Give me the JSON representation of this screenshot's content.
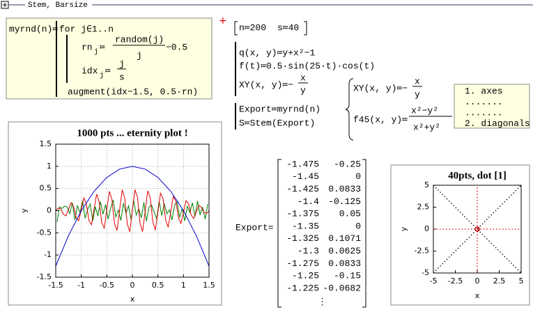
{
  "header": {
    "title": "Stem, Barsize"
  },
  "program": {
    "name": "myrnd(n)≔",
    "loop": "for j∈1..n",
    "rn": "rn",
    "rn_sub": "j",
    "rn_assign": "≔",
    "rn_num": "random(j)",
    "rn_den": "j",
    "rn_tail": "−0.5",
    "idx": "idx",
    "idx_sub": "j",
    "idx_assign": "≔",
    "idx_num": "j",
    "idx_den": "s",
    "result": "augment(idx−1.5, 0.5·rn)"
  },
  "params": {
    "n": "n≔200",
    "s": "s≔40"
  },
  "defs": {
    "q": "q(x, y)≔y+x²−1",
    "f": "f(t)≔0.5·sin(25·t)·cos(t)",
    "xy": "XY(x, y)≔−",
    "xy_num": "x",
    "xy_den": "y"
  },
  "export_defs": {
    "export": "Export≔myrnd(n)",
    "stem": "S≔Stem(Export)"
  },
  "brace": {
    "xy": "XY(x, y)≔−",
    "xy_num": "x",
    "xy_den": "y",
    "f45": "f45(x, y)≔",
    "f45_num": "x²−y²",
    "f45_den": "x²+y²"
  },
  "legend_box": {
    "lines": [
      "1. axes",
      ".......",
      ".......",
      "2. diagonals"
    ]
  },
  "matrix": {
    "label": "Export=",
    "rows": [
      [
        -1.475,
        -0.25
      ],
      [
        -1.45,
        0
      ],
      [
        -1.425,
        0.0833
      ],
      [
        -1.4,
        -0.125
      ],
      [
        -1.375,
        0.05
      ],
      [
        -1.35,
        0
      ],
      [
        -1.325,
        0.1071
      ],
      [
        -1.3,
        0.0625
      ],
      [
        -1.275,
        0.0833
      ],
      [
        -1.25,
        -0.15
      ],
      [
        -1.225,
        -0.0682
      ]
    ],
    "more": "⋮"
  },
  "chart_data": [
    {
      "type": "line",
      "title": "1000 pts ... eternity plot !",
      "x_label": "x",
      "y_label": "y",
      "xlim": [
        -1.5,
        1.5
      ],
      "ylim": [
        -1.5,
        1.5
      ],
      "xticks": [
        -1.5,
        -1,
        -0.5,
        0,
        0.5,
        1,
        1.5
      ],
      "yticks": [
        -1.5,
        -1,
        -0.5,
        0,
        0.5,
        1,
        1.5
      ],
      "grid": true,
      "series": [
        {
          "color": "#008000",
          "x": [
            -1.475,
            -1.425,
            -1.375,
            -1.325,
            -1.275,
            -1.225,
            -1.175,
            -1.125,
            -1.075,
            -1.025,
            -0.975,
            -0.925,
            -0.875,
            -0.825,
            -0.775,
            -0.725,
            -0.675,
            -0.625,
            -0.575,
            -0.525,
            -0.475,
            -0.425,
            -0.375,
            -0.325,
            -0.275,
            -0.225,
            -0.175,
            -0.125,
            -0.075,
            -0.025,
            0.025,
            0.075,
            0.125,
            0.175,
            0.225,
            0.275,
            0.325,
            0.375,
            0.425,
            0.475,
            0.525,
            0.575,
            0.625,
            0.675,
            0.725,
            0.775,
            0.825,
            0.875,
            0.925,
            0.975,
            1.025,
            1.075,
            1.125,
            1.175,
            1.225,
            1.275,
            1.325,
            1.375,
            1.425,
            1.475
          ],
          "values": [
            -0.25,
            0.0833,
            0.05,
            0.1071,
            0.0833,
            -0.0682,
            0.18,
            -0.21,
            0.12,
            -0.05,
            0.22,
            -0.17,
            0.03,
            0.15,
            -0.23,
            0.09,
            -0.12,
            0.2,
            -0.08,
            0.14,
            -0.19,
            0.06,
            0.24,
            -0.14,
            0.01,
            -0.22,
            0.17,
            -0.06,
            0.11,
            -0.2,
            0.23,
            -0.1,
            0.04,
            -0.16,
            0.19,
            -0.24,
            0.08,
            0.13,
            -0.03,
            -0.18,
            0.21,
            -0.11,
            0.16,
            -0.07,
            0.02,
            -0.21,
            0.12,
            0.2,
            -0.15,
            0.05,
            -0.23,
            0.1,
            -0.04,
            0.18,
            -0.13,
            0.22,
            -0.09,
            0.07,
            -0.19,
            0.15
          ]
        },
        {
          "color": "#e00000",
          "x": [
            -1.5,
            -1.45,
            -1.4,
            -1.35,
            -1.3,
            -1.25,
            -1.2,
            -1.15,
            -1.1,
            -1.05,
            -1,
            -0.95,
            -0.9,
            -0.85,
            -0.8,
            -0.75,
            -0.7,
            -0.65,
            -0.6,
            -0.55,
            -0.5,
            -0.45,
            -0.4,
            -0.35,
            -0.3,
            -0.25,
            -0.2,
            -0.15,
            -0.1,
            -0.05,
            0,
            0.05,
            0.1,
            0.15,
            0.2,
            0.25,
            0.3,
            0.35,
            0.4,
            0.45,
            0.5,
            0.55,
            0.6,
            0.65,
            0.7,
            0.75,
            0.8,
            0.85,
            0.9,
            0.95,
            1,
            1.05,
            1.1,
            1.15,
            1.2,
            1.25,
            1.3,
            1.35,
            1.4,
            1.45,
            1.5
          ],
          "values": [
            0.007,
            0.06,
            0.036,
            -0.079,
            -0.118,
            0.026,
            0.179,
            0.094,
            -0.159,
            -0.224,
            0.036,
            0.286,
            0.151,
            -0.223,
            -0.318,
            0.036,
            0.373,
            0.205,
            -0.268,
            -0.395,
            0.029,
            0.435,
            0.251,
            -0.293,
            -0.448,
            0.016,
            0.47,
            0.283,
            -0.298,
            -0.474,
            0,
            0.474,
            0.298,
            -0.283,
            -0.47,
            -0.016,
            0.448,
            0.293,
            -0.251,
            -0.435,
            -0.029,
            0.395,
            0.268,
            -0.205,
            -0.373,
            -0.036,
            0.318,
            0.223,
            -0.151,
            -0.286,
            -0.036,
            0.224,
            0.159,
            -0.094,
            -0.179,
            -0.026,
            0.118,
            0.079,
            -0.036,
            -0.06,
            -0.007
          ]
        },
        {
          "color": "#0000cc",
          "x": [
            -1.5,
            -1.25,
            -1,
            -0.75,
            -0.5,
            -0.25,
            0,
            0.25,
            0.5,
            0.75,
            1,
            1.25,
            1.5
          ],
          "values": [
            -1.25,
            -0.5625,
            0,
            0.4375,
            0.75,
            0.9375,
            1,
            0.9375,
            0.75,
            0.4375,
            0,
            -0.5625,
            -1.25
          ]
        }
      ]
    },
    {
      "type": "line",
      "title": "40pts, dot [1]",
      "x_label": "x",
      "y_label": "y",
      "xlim": [
        -5,
        5
      ],
      "ylim": [
        -5,
        5
      ],
      "xticks": [
        -5,
        -2.5,
        0,
        2.5,
        5
      ],
      "yticks": [
        -5,
        -2.5,
        0,
        2.5,
        5
      ],
      "grid": false,
      "dash": "dot",
      "series": [
        {
          "color": "#e00000",
          "x": [
            -5,
            5
          ],
          "values": [
            0,
            0
          ]
        },
        {
          "color": "#e00000",
          "x": [
            0,
            0
          ],
          "values": [
            -5,
            5
          ]
        },
        {
          "color": "#000000",
          "x": [
            -5,
            5
          ],
          "values": [
            -5,
            5
          ]
        },
        {
          "color": "#000000",
          "x": [
            -5,
            5
          ],
          "values": [
            5,
            -5
          ]
        },
        {
          "color": "#cc0000",
          "marker": "circle",
          "x": [
            0
          ],
          "values": [
            0
          ]
        }
      ]
    }
  ]
}
